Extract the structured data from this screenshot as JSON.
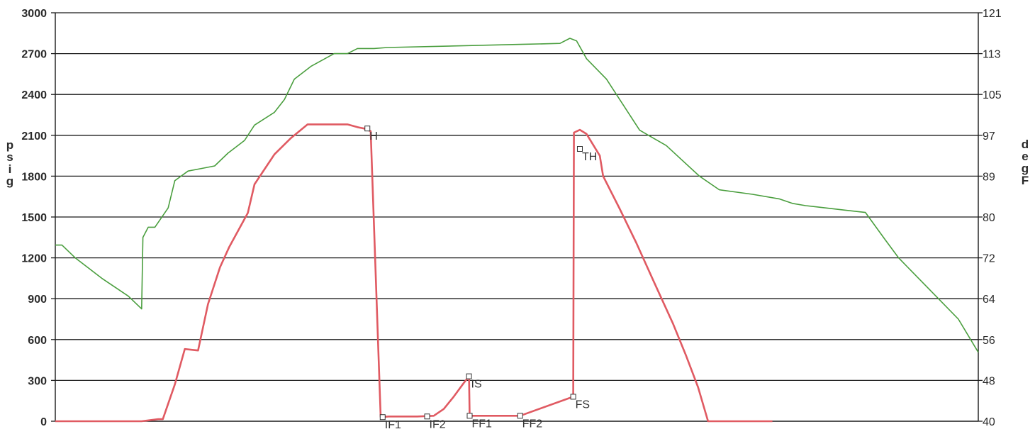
{
  "chart_data": {
    "type": "line",
    "ylabel_left": "psig",
    "ylabel_right": "degF",
    "left_axis": {
      "ticks": [
        "3000",
        "2700",
        "2400",
        "2100",
        "1800",
        "1500",
        "1200",
        "900",
        "600",
        "300",
        "0"
      ],
      "ylim": [
        0,
        3000
      ]
    },
    "right_axis": {
      "ticks": [
        "121",
        "113",
        "105",
        "97",
        "89",
        "80",
        "72",
        "64",
        "56",
        "48",
        "40"
      ]
    },
    "grid": true,
    "colors": {
      "pressure": "#e05a62",
      "temperature": "#4a9e3e",
      "grid": "#1a1a1a"
    },
    "series": [
      {
        "axis": "left",
        "x": [
          0,
          130,
          155,
          162,
          180,
          195,
          215,
          230,
          248,
          262,
          290,
          300,
          330,
          355,
          380,
          400,
          420,
          440,
          455,
          465,
          475,
          490,
          502,
          503,
          518,
          545,
          570,
          585,
          600,
          615,
          623,
          624,
          660,
          700,
          780,
          781,
          790,
          800,
          820,
          825,
          850,
          875,
          900,
          930,
          950,
          968,
          983,
          1080
        ],
        "y": [
          0,
          0,
          15,
          15,
          270,
          530,
          520,
          860,
          1130,
          1280,
          1530,
          1740,
          1960,
          2080,
          2180,
          2180,
          2180,
          2180,
          2160,
          2150,
          2130,
          30,
          35,
          35,
          35,
          35,
          40,
          90,
          180,
          280,
          330,
          40,
          40,
          40,
          180,
          2120,
          2140,
          2110,
          1950,
          1800,
          1560,
          1310,
          1040,
          720,
          480,
          250,
          0,
          0
        ]
      },
      {
        "axis": "right",
        "x": [
          0,
          10,
          30,
          70,
          110,
          130,
          132,
          140,
          150,
          170,
          180,
          200,
          220,
          240,
          260,
          285,
          300,
          330,
          345,
          360,
          385,
          420,
          440,
          455,
          480,
          500,
          600,
          700,
          760,
          775,
          785,
          800,
          830,
          860,
          880,
          900,
          920,
          945,
          970,
          1000,
          1050,
          1090,
          1110,
          1130,
          1160,
          1190,
          1220,
          1250,
          1270,
          1285,
          1300,
          1330,
          1360,
          1390
        ],
        "y": [
          74.5,
          74.5,
          72,
          68,
          64.5,
          62,
          76,
          78,
          78,
          82,
          88,
          90,
          90.5,
          91,
          93.5,
          96,
          99,
          101.5,
          104,
          108,
          110.5,
          113,
          113,
          114,
          114,
          114.2,
          114.5,
          114.8,
          115,
          116,
          115.5,
          112,
          108,
          102,
          98,
          96.5,
          95,
          92,
          89,
          86,
          85,
          84,
          83,
          82.5,
          82,
          81.5,
          81,
          75.5,
          72,
          70,
          68,
          64,
          60,
          53.5
        ]
      }
    ],
    "annotations": [
      "H",
      "TH",
      "IF1",
      "IF2",
      "IS",
      "FF1",
      "FF2",
      "FS"
    ]
  }
}
